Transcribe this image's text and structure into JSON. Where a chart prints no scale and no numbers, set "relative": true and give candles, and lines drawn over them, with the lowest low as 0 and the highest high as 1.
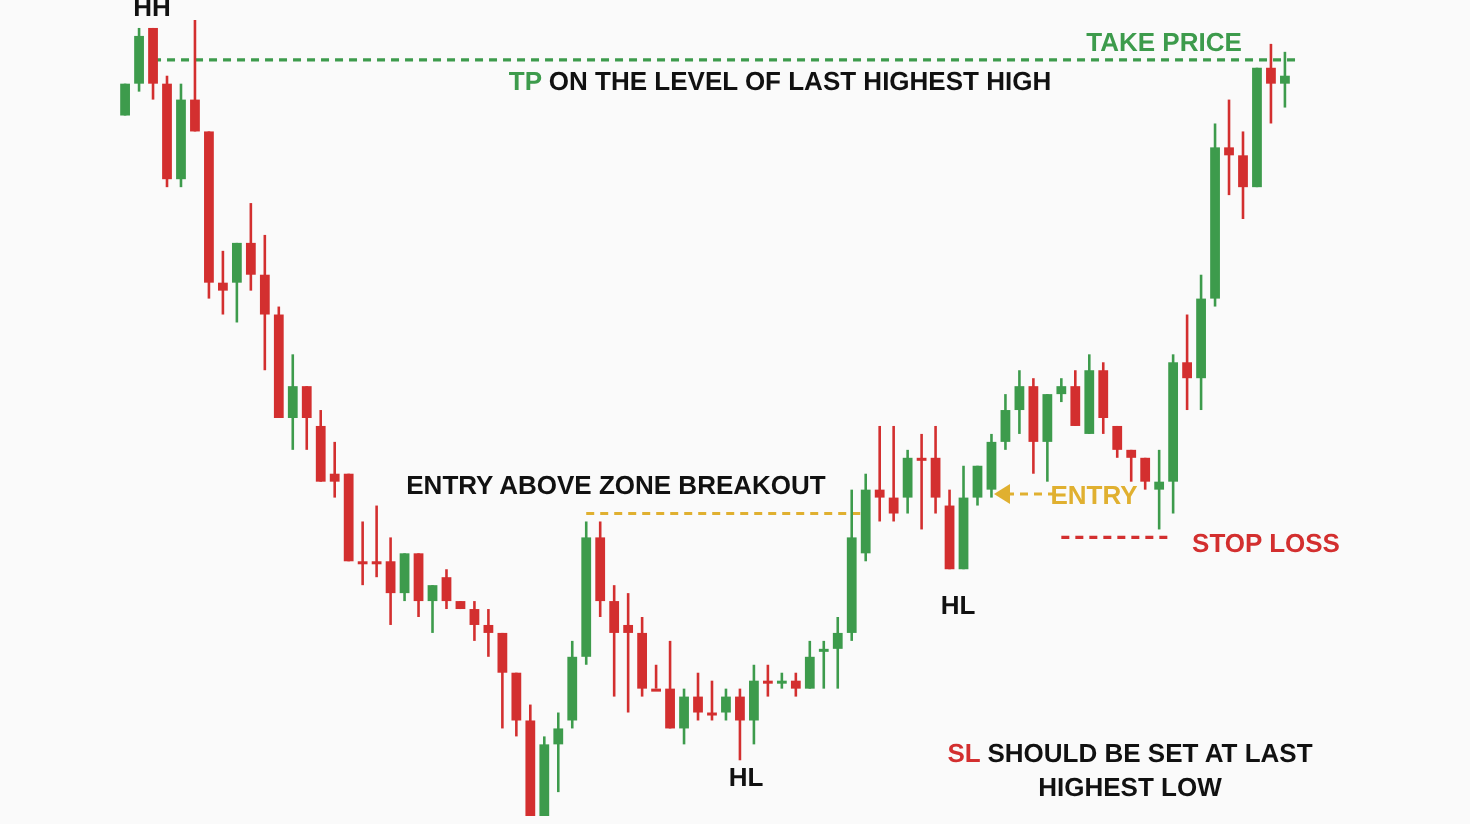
{
  "chart_data": {
    "type": "candlestick",
    "relative": true,
    "categories": [
      null,
      null,
      null,
      null,
      null,
      null,
      null,
      null,
      null,
      null,
      null,
      null,
      null,
      null,
      null,
      null,
      null,
      null,
      null,
      null,
      null,
      null,
      null,
      null,
      null,
      null,
      null,
      null,
      null,
      null,
      null,
      null,
      null,
      null,
      null,
      null,
      null,
      null,
      null,
      null,
      null,
      null,
      null,
      null,
      null,
      null,
      null,
      null,
      null,
      null,
      null,
      null,
      null,
      null,
      null,
      null,
      null,
      null,
      null,
      null,
      null,
      null,
      null,
      null,
      null,
      null,
      null,
      null,
      null,
      null,
      null,
      null,
      null,
      null,
      null,
      null,
      null,
      null,
      null,
      null,
      null,
      null,
      null,
      null
    ],
    "ohlc": [
      [
        0.88,
        0.92,
        0.88,
        0.92
      ],
      [
        0.92,
        0.99,
        0.91,
        0.98
      ],
      [
        0.99,
        0.99,
        0.9,
        0.92
      ],
      [
        0.92,
        0.93,
        0.79,
        0.8
      ],
      [
        0.8,
        0.92,
        0.79,
        0.9
      ],
      [
        0.9,
        1,
        0.86,
        0.86
      ],
      [
        0.86,
        0.86,
        0.65,
        0.67
      ],
      [
        0.67,
        0.71,
        0.63,
        0.66
      ],
      [
        0.67,
        0.72,
        0.62,
        0.72
      ],
      [
        0.72,
        0.77,
        0.66,
        0.68
      ],
      [
        0.68,
        0.73,
        0.56,
        0.63
      ],
      [
        0.63,
        0.64,
        0.5,
        0.5
      ],
      [
        0.5,
        0.58,
        0.46,
        0.54
      ],
      [
        0.54,
        0.54,
        0.46,
        0.5
      ],
      [
        0.49,
        0.51,
        0.42,
        0.42
      ],
      [
        0.43,
        0.47,
        0.4,
        0.42
      ],
      [
        0.43,
        0.43,
        0.32,
        0.32
      ],
      [
        0.32,
        0.37,
        0.29,
        0.32
      ],
      [
        0.32,
        0.39,
        0.3,
        0.32
      ],
      [
        0.32,
        0.35,
        0.24,
        0.28
      ],
      [
        0.28,
        0.33,
        0.27,
        0.33
      ],
      [
        0.33,
        0.33,
        0.25,
        0.27
      ],
      [
        0.27,
        0.29,
        0.23,
        0.29
      ],
      [
        0.3,
        0.31,
        0.26,
        0.27
      ],
      [
        0.27,
        0.27,
        0.26,
        0.26
      ],
      [
        0.26,
        0.27,
        0.22,
        0.24
      ],
      [
        0.24,
        0.26,
        0.2,
        0.23
      ],
      [
        0.23,
        0.23,
        0.11,
        0.18
      ],
      [
        0.18,
        0.18,
        0.1,
        0.12
      ],
      [
        0.12,
        0.14,
        0,
        0
      ],
      [
        0,
        0.1,
        0,
        0.09
      ],
      [
        0.09,
        0.13,
        0.03,
        0.11
      ],
      [
        0.12,
        0.22,
        0.11,
        0.2
      ],
      [
        0.2,
        0.37,
        0.19,
        0.35
      ],
      [
        0.35,
        0.37,
        0.25,
        0.27
      ],
      [
        0.27,
        0.29,
        0.15,
        0.23
      ],
      [
        0.24,
        0.28,
        0.13,
        0.23
      ],
      [
        0.23,
        0.25,
        0.15,
        0.16
      ],
      [
        0.16,
        0.19,
        0.16,
        0.16
      ],
      [
        0.16,
        0.22,
        0.11,
        0.11
      ],
      [
        0.11,
        0.16,
        0.09,
        0.15
      ],
      [
        0.15,
        0.18,
        0.12,
        0.13
      ],
      [
        0.13,
        0.17,
        0.12,
        0.13
      ],
      [
        0.13,
        0.16,
        0.12,
        0.15
      ],
      [
        0.15,
        0.16,
        0.07,
        0.12
      ],
      [
        0.12,
        0.19,
        0.09,
        0.17
      ],
      [
        0.17,
        0.19,
        0.15,
        0.17
      ],
      [
        0.17,
        0.18,
        0.16,
        0.17
      ],
      [
        0.17,
        0.18,
        0.15,
        0.16
      ],
      [
        0.16,
        0.22,
        0.16,
        0.2
      ],
      [
        0.21,
        0.22,
        0.16,
        0.21
      ],
      [
        0.21,
        0.25,
        0.16,
        0.23
      ],
      [
        0.23,
        0.41,
        0.22,
        0.35
      ],
      [
        0.33,
        0.43,
        0.32,
        0.41
      ],
      [
        0.41,
        0.49,
        0.37,
        0.4
      ],
      [
        0.4,
        0.49,
        0.37,
        0.38
      ],
      [
        0.4,
        0.46,
        0.38,
        0.45
      ],
      [
        0.45,
        0.48,
        0.36,
        0.45
      ],
      [
        0.45,
        0.49,
        0.38,
        0.4
      ],
      [
        0.39,
        0.41,
        0.31,
        0.31
      ],
      [
        0.31,
        0.44,
        0.31,
        0.4
      ],
      [
        0.4,
        0.44,
        0.39,
        0.44
      ],
      [
        0.41,
        0.48,
        0.4,
        0.47
      ],
      [
        0.47,
        0.53,
        0.46,
        0.51
      ],
      [
        0.51,
        0.56,
        0.48,
        0.54
      ],
      [
        0.54,
        0.55,
        0.43,
        0.47
      ],
      [
        0.47,
        0.53,
        0.42,
        0.53
      ],
      [
        0.53,
        0.55,
        0.52,
        0.54
      ],
      [
        0.54,
        0.56,
        0.49,
        0.49
      ],
      [
        0.48,
        0.58,
        0.48,
        0.56
      ],
      [
        0.56,
        0.57,
        0.48,
        0.5
      ],
      [
        0.49,
        0.49,
        0.45,
        0.46
      ],
      [
        0.46,
        0.46,
        0.42,
        0.45
      ],
      [
        0.45,
        0.45,
        0.41,
        0.42
      ],
      [
        0.41,
        0.46,
        0.36,
        0.42
      ],
      [
        0.42,
        0.58,
        0.38,
        0.57
      ],
      [
        0.57,
        0.63,
        0.51,
        0.55
      ],
      [
        0.55,
        0.68,
        0.51,
        0.65
      ],
      [
        0.65,
        0.87,
        0.64,
        0.84
      ],
      [
        0.84,
        0.9,
        0.78,
        0.83
      ],
      [
        0.83,
        0.86,
        0.75,
        0.79
      ],
      [
        0.79,
        0.94,
        0.79,
        0.94
      ],
      [
        0.94,
        0.97,
        0.87,
        0.92
      ],
      [
        0.92,
        0.96,
        0.89,
        0.93
      ]
    ],
    "colors": [
      "#3d9b4c",
      "#3d9b4c",
      "#d32f2f",
      "#d32f2f",
      "#3d9b4c",
      "#d32f2f",
      "#d32f2f",
      "#d32f2f",
      "#3d9b4c",
      "#d32f2f",
      "#d32f2f",
      "#d32f2f",
      "#3d9b4c",
      "#d32f2f",
      "#d32f2f",
      "#d32f2f",
      "#d32f2f",
      "#d32f2f",
      "#d32f2f",
      "#d32f2f",
      "#3d9b4c",
      "#d32f2f",
      "#3d9b4c",
      "#d32f2f",
      "#d32f2f",
      "#d32f2f",
      "#d32f2f",
      "#d32f2f",
      "#d32f2f",
      "#d32f2f",
      "#3d9b4c",
      "#3d9b4c",
      "#3d9b4c",
      "#3d9b4c",
      "#d32f2f",
      "#d32f2f",
      "#d32f2f",
      "#d32f2f",
      "#d32f2f",
      "#d32f2f",
      "#3d9b4c",
      "#d32f2f",
      "#d32f2f",
      "#3d9b4c",
      "#d32f2f",
      "#3d9b4c",
      "#d32f2f",
      "#3d9b4c",
      "#d32f2f",
      "#3d9b4c",
      "#3d9b4c",
      "#3d9b4c",
      "#3d9b4c",
      "#3d9b4c",
      "#d32f2f",
      "#d32f2f",
      "#3d9b4c",
      "#d32f2f",
      "#d32f2f",
      "#d32f2f",
      "#3d9b4c",
      "#3d9b4c",
      "#3d9b4c",
      "#3d9b4c",
      "#3d9b4c",
      "#d32f2f",
      "#3d9b4c",
      "#3d9b4c",
      "#d32f2f",
      "#3d9b4c",
      "#d32f2f",
      "#d32f2f",
      "#d32f2f",
      "#d32f2f",
      "#3d9b4c",
      "#3d9b4c",
      "#d32f2f",
      "#3d9b4c",
      "#3d9b4c",
      "#d32f2f",
      "#d32f2f",
      "#3d9b4c",
      "#d32f2f",
      "#3d9b4c"
    ],
    "ref_lines": [
      {
        "axis": "y",
        "value": 0.95,
        "label": "TAKE PRICE",
        "color": "#3d9b4c",
        "line_style": "dashed"
      },
      {
        "axis": "y",
        "value": 0.38,
        "label": "ENTRY ABOVE ZONE BREAKOUT",
        "color": "#e0b030",
        "line_style": "dashed"
      },
      {
        "axis": "y",
        "value": 0.35,
        "label": "STOP LOSS",
        "color": "#d32f2f",
        "line_style": "dashed"
      }
    ],
    "annotations": [
      "HH",
      "TP ON THE LEVEL OF LAST HIGHEST HIGH",
      "HL",
      "HL",
      "SL SHOULD BE SET AT LAST HIGHEST LOW",
      "ENTRY"
    ]
  }
}
